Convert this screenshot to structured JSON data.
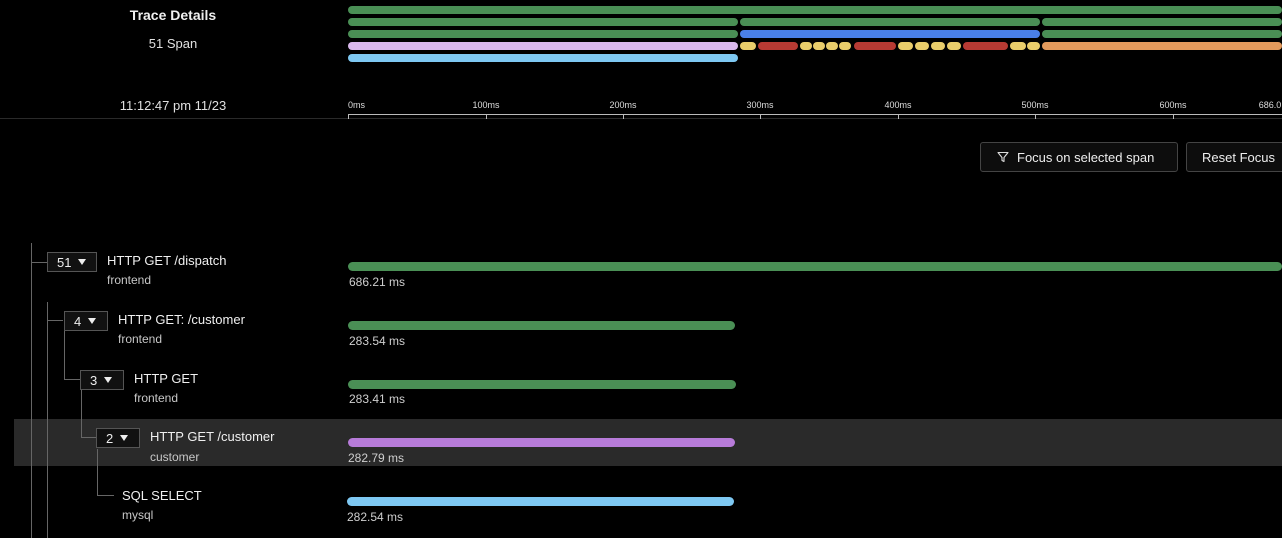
{
  "header": {
    "title": "Trace Details",
    "span_count": "51 Span",
    "timestamp": "11:12:47 pm 11/23"
  },
  "timeline": {
    "ticks": [
      "0ms",
      "100ms",
      "200ms",
      "300ms",
      "400ms",
      "500ms",
      "600ms",
      "686.0"
    ]
  },
  "toolbar": {
    "focus_label": "Focus on selected span",
    "focus_icon": "filter-icon",
    "reset_label": "Reset Focus"
  },
  "colors": {
    "green": "#4a8f55",
    "blue": "#4a80e8",
    "lavender": "#d9b8ec",
    "purple": "#b77bd9",
    "sky": "#7ec8f2",
    "yellow": "#e9cd6b",
    "red": "#b73a33",
    "orange": "#e39a5c"
  },
  "spans": [
    {
      "count": "51",
      "name": "HTTP GET /dispatch",
      "service": "frontend",
      "duration": "686.21 ms",
      "color": "green"
    },
    {
      "count": "4",
      "name": "HTTP GET: /customer",
      "service": "frontend",
      "duration": "283.54 ms",
      "color": "green"
    },
    {
      "count": "3",
      "name": "HTTP GET",
      "service": "frontend",
      "duration": "283.41 ms",
      "color": "green"
    },
    {
      "count": "2",
      "name": "HTTP GET /customer",
      "service": "customer",
      "duration": "282.79 ms",
      "color": "purple",
      "selected": true
    },
    {
      "name": "SQL SELECT",
      "service": "mysql",
      "duration": "282.54 ms",
      "color": "sky"
    }
  ]
}
